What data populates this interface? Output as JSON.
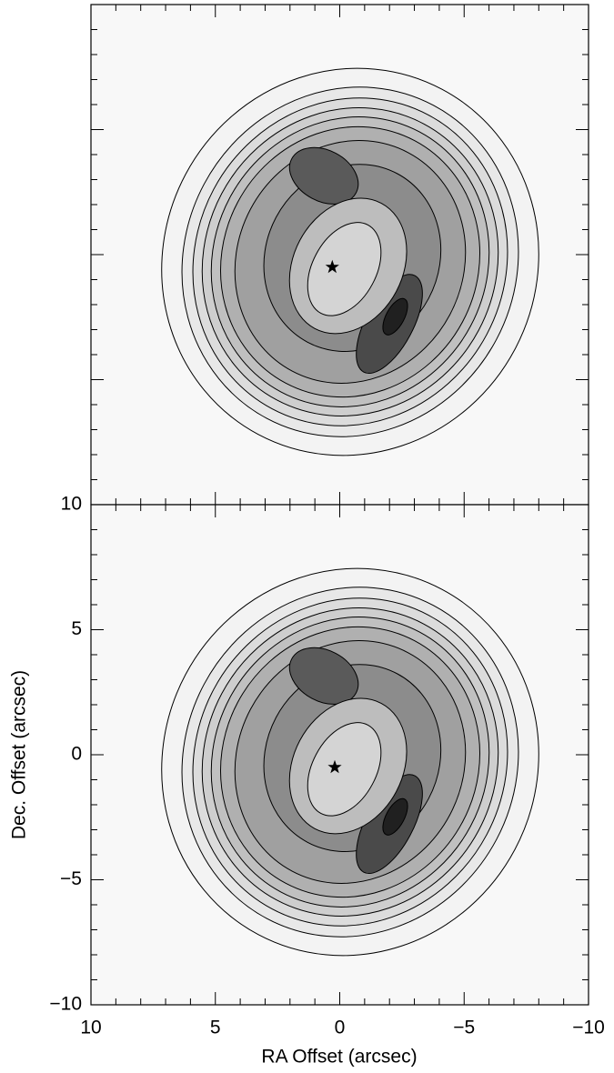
{
  "chart_data": [
    {
      "type": "contour",
      "star": {
        "x": 0.3,
        "y": -0.5
      }
    },
    {
      "type": "contour",
      "xlabel": "RA Offset (arcsec)",
      "ylabel": "Dec. Offset (arcsec)",
      "xlim": [
        10,
        -10
      ],
      "ylim": [
        -10,
        10
      ],
      "xticks": [
        10,
        5,
        0,
        {
          "value": -5,
          "label": "−5"
        },
        {
          "value": -10,
          "label": "−10"
        }
      ],
      "yticks": [
        {
          "value": -10,
          "label": "−10"
        },
        {
          "value": -5,
          "label": "−5"
        },
        0,
        5,
        10
      ],
      "star": {
        "x": 0.2,
        "y": -0.5
      }
    }
  ]
}
